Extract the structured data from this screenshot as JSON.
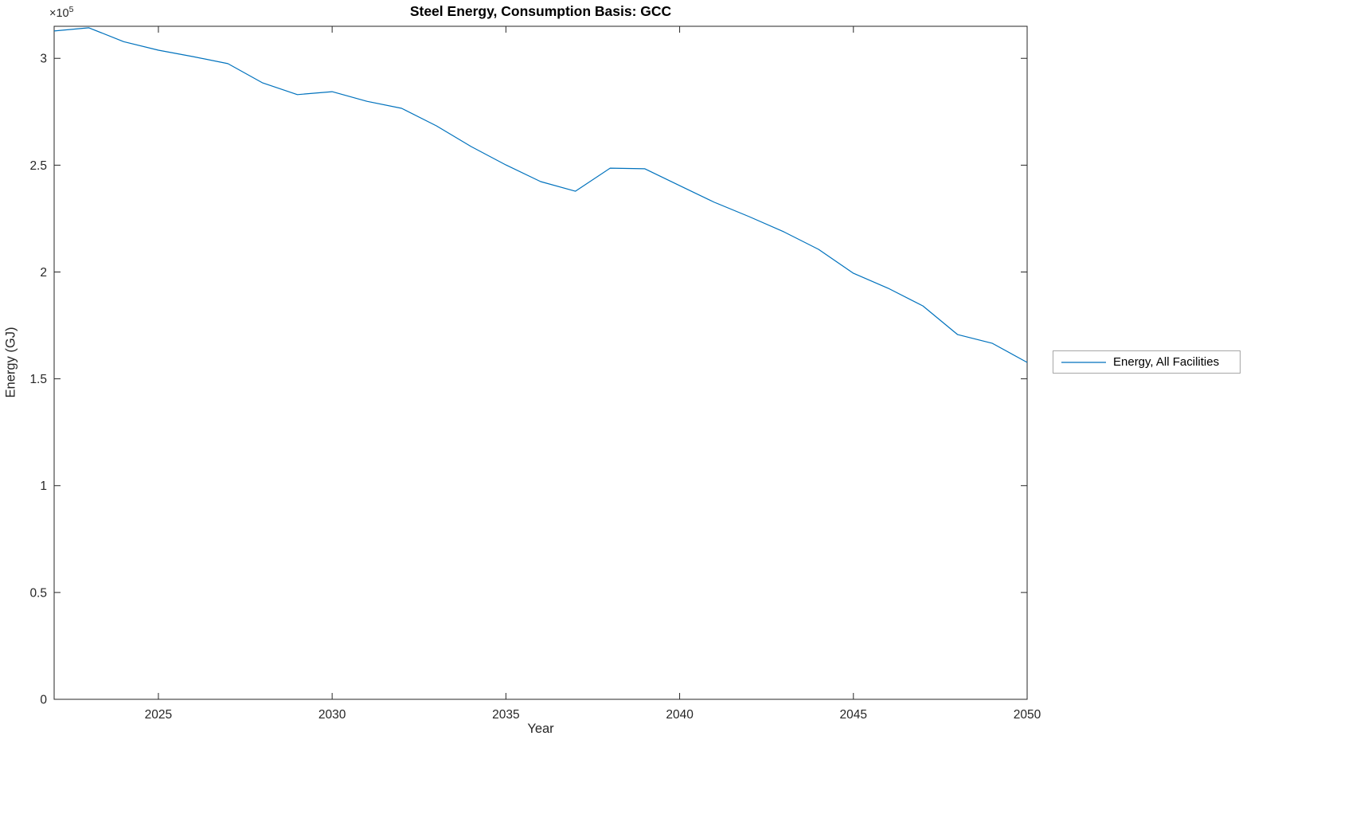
{
  "chart_data": {
    "type": "line",
    "title": "Steel Energy, Consumption Basis: GCC",
    "xlabel": "Year",
    "ylabel": "Energy (GJ)",
    "y_axis_multiplier": {
      "base": "×10",
      "exponent": "5"
    },
    "x": [
      2022,
      2023,
      2024,
      2025,
      2026,
      2027,
      2028,
      2029,
      2030,
      2031,
      2032,
      2033,
      2034,
      2035,
      2036,
      2037,
      2038,
      2039,
      2040,
      2041,
      2042,
      2043,
      2044,
      2045,
      2046,
      2047,
      2048,
      2049,
      2050
    ],
    "series": [
      {
        "name": "Energy, All Facilities",
        "color": "#0072BD",
        "values": [
          312800,
          314300,
          307800,
          303800,
          300800,
          297500,
          288500,
          283000,
          284400,
          279900,
          276600,
          268400,
          258700,
          250100,
          242300,
          237800,
          248600,
          248300,
          240400,
          232600,
          225900,
          218800,
          210600,
          199400,
          192400,
          184100,
          170700,
          166600,
          157700
        ]
      }
    ],
    "xlim": [
      2022,
      2050
    ],
    "ylim": [
      0,
      315000
    ],
    "xticks": [
      2025,
      2030,
      2035,
      2040,
      2045,
      2050
    ],
    "yticks": [
      0,
      50000,
      100000,
      150000,
      200000,
      250000,
      300000
    ],
    "ytick_labels": [
      "0",
      "0.5",
      "1",
      "1.5",
      "2",
      "2.5",
      "3"
    ],
    "grid": false,
    "legend": {
      "position": "right-outside",
      "entries": [
        "Energy, All Facilities"
      ]
    },
    "axis_color": "#262626",
    "background": "#ffffff"
  }
}
